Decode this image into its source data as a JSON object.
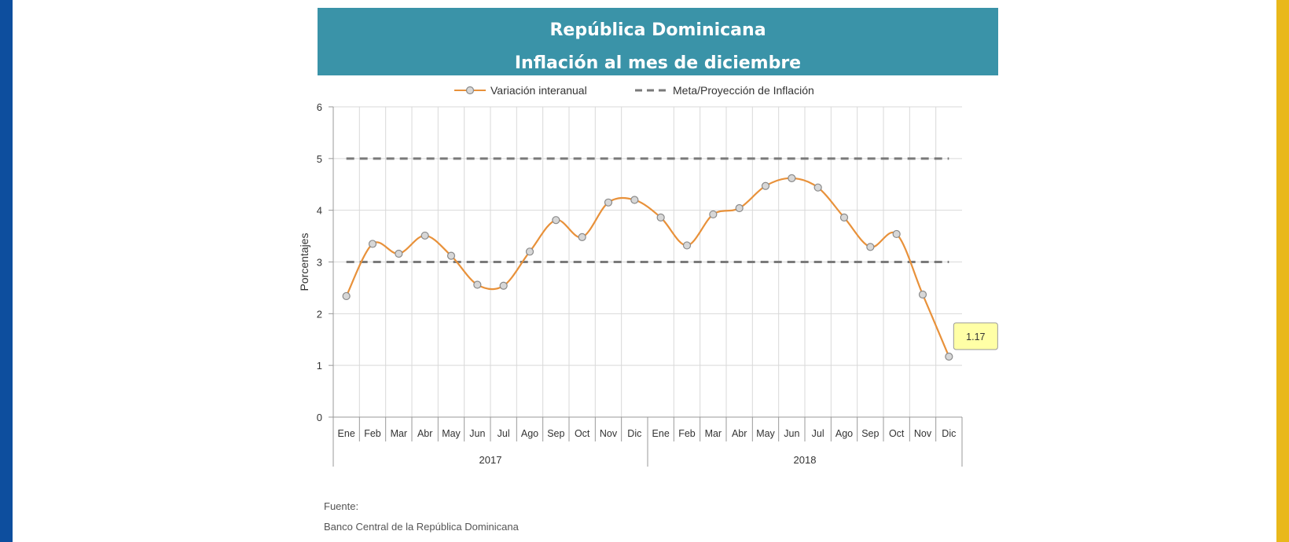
{
  "header": {
    "title_line1": "República Dominicana",
    "title_line2": "Inflación al mes de diciembre"
  },
  "source": {
    "label": "Fuente:",
    "text": "Banco Central de la República Dominicana"
  },
  "colors": {
    "banner": "#3a93a8",
    "series": "#e8913a",
    "target": "#7a7a7a",
    "callout_fill": "#ffffa6",
    "left_edge": "#0d4e9e",
    "right_edge": "#e9b81b"
  },
  "chart_data": {
    "type": "line",
    "ylabel": "Porcentajes",
    "ylim": [
      0,
      6
    ],
    "yticks": [
      0,
      1,
      2,
      3,
      4,
      5,
      6
    ],
    "legend_position": "top",
    "grid": true,
    "categories": [
      "Ene",
      "Feb",
      "Mar",
      "Abr",
      "May",
      "Jun",
      "Jul",
      "Ago",
      "Sep",
      "Oct",
      "Nov",
      "Dic",
      "Ene",
      "Feb",
      "Mar",
      "Abr",
      "May",
      "Jun",
      "Jul",
      "Ago",
      "Sep",
      "Oct",
      "Nov",
      "Dic"
    ],
    "groups": [
      {
        "label": "2017",
        "count": 12
      },
      {
        "label": "2018",
        "count": 12
      }
    ],
    "series": [
      {
        "name": "Variación interanual",
        "style": "smooth-line-markers",
        "values": [
          2.34,
          3.35,
          3.16,
          3.51,
          3.12,
          2.56,
          2.54,
          3.2,
          3.81,
          3.48,
          4.15,
          4.2,
          3.86,
          3.32,
          3.92,
          4.04,
          4.47,
          4.62,
          4.44,
          3.86,
          3.29,
          3.54,
          2.37,
          1.17
        ]
      },
      {
        "name": "Meta/Proyección de Inflación",
        "style": "dashed",
        "bands": [
          5,
          3
        ]
      }
    ],
    "annotations": [
      {
        "index": 23,
        "text": "1.17"
      }
    ]
  }
}
